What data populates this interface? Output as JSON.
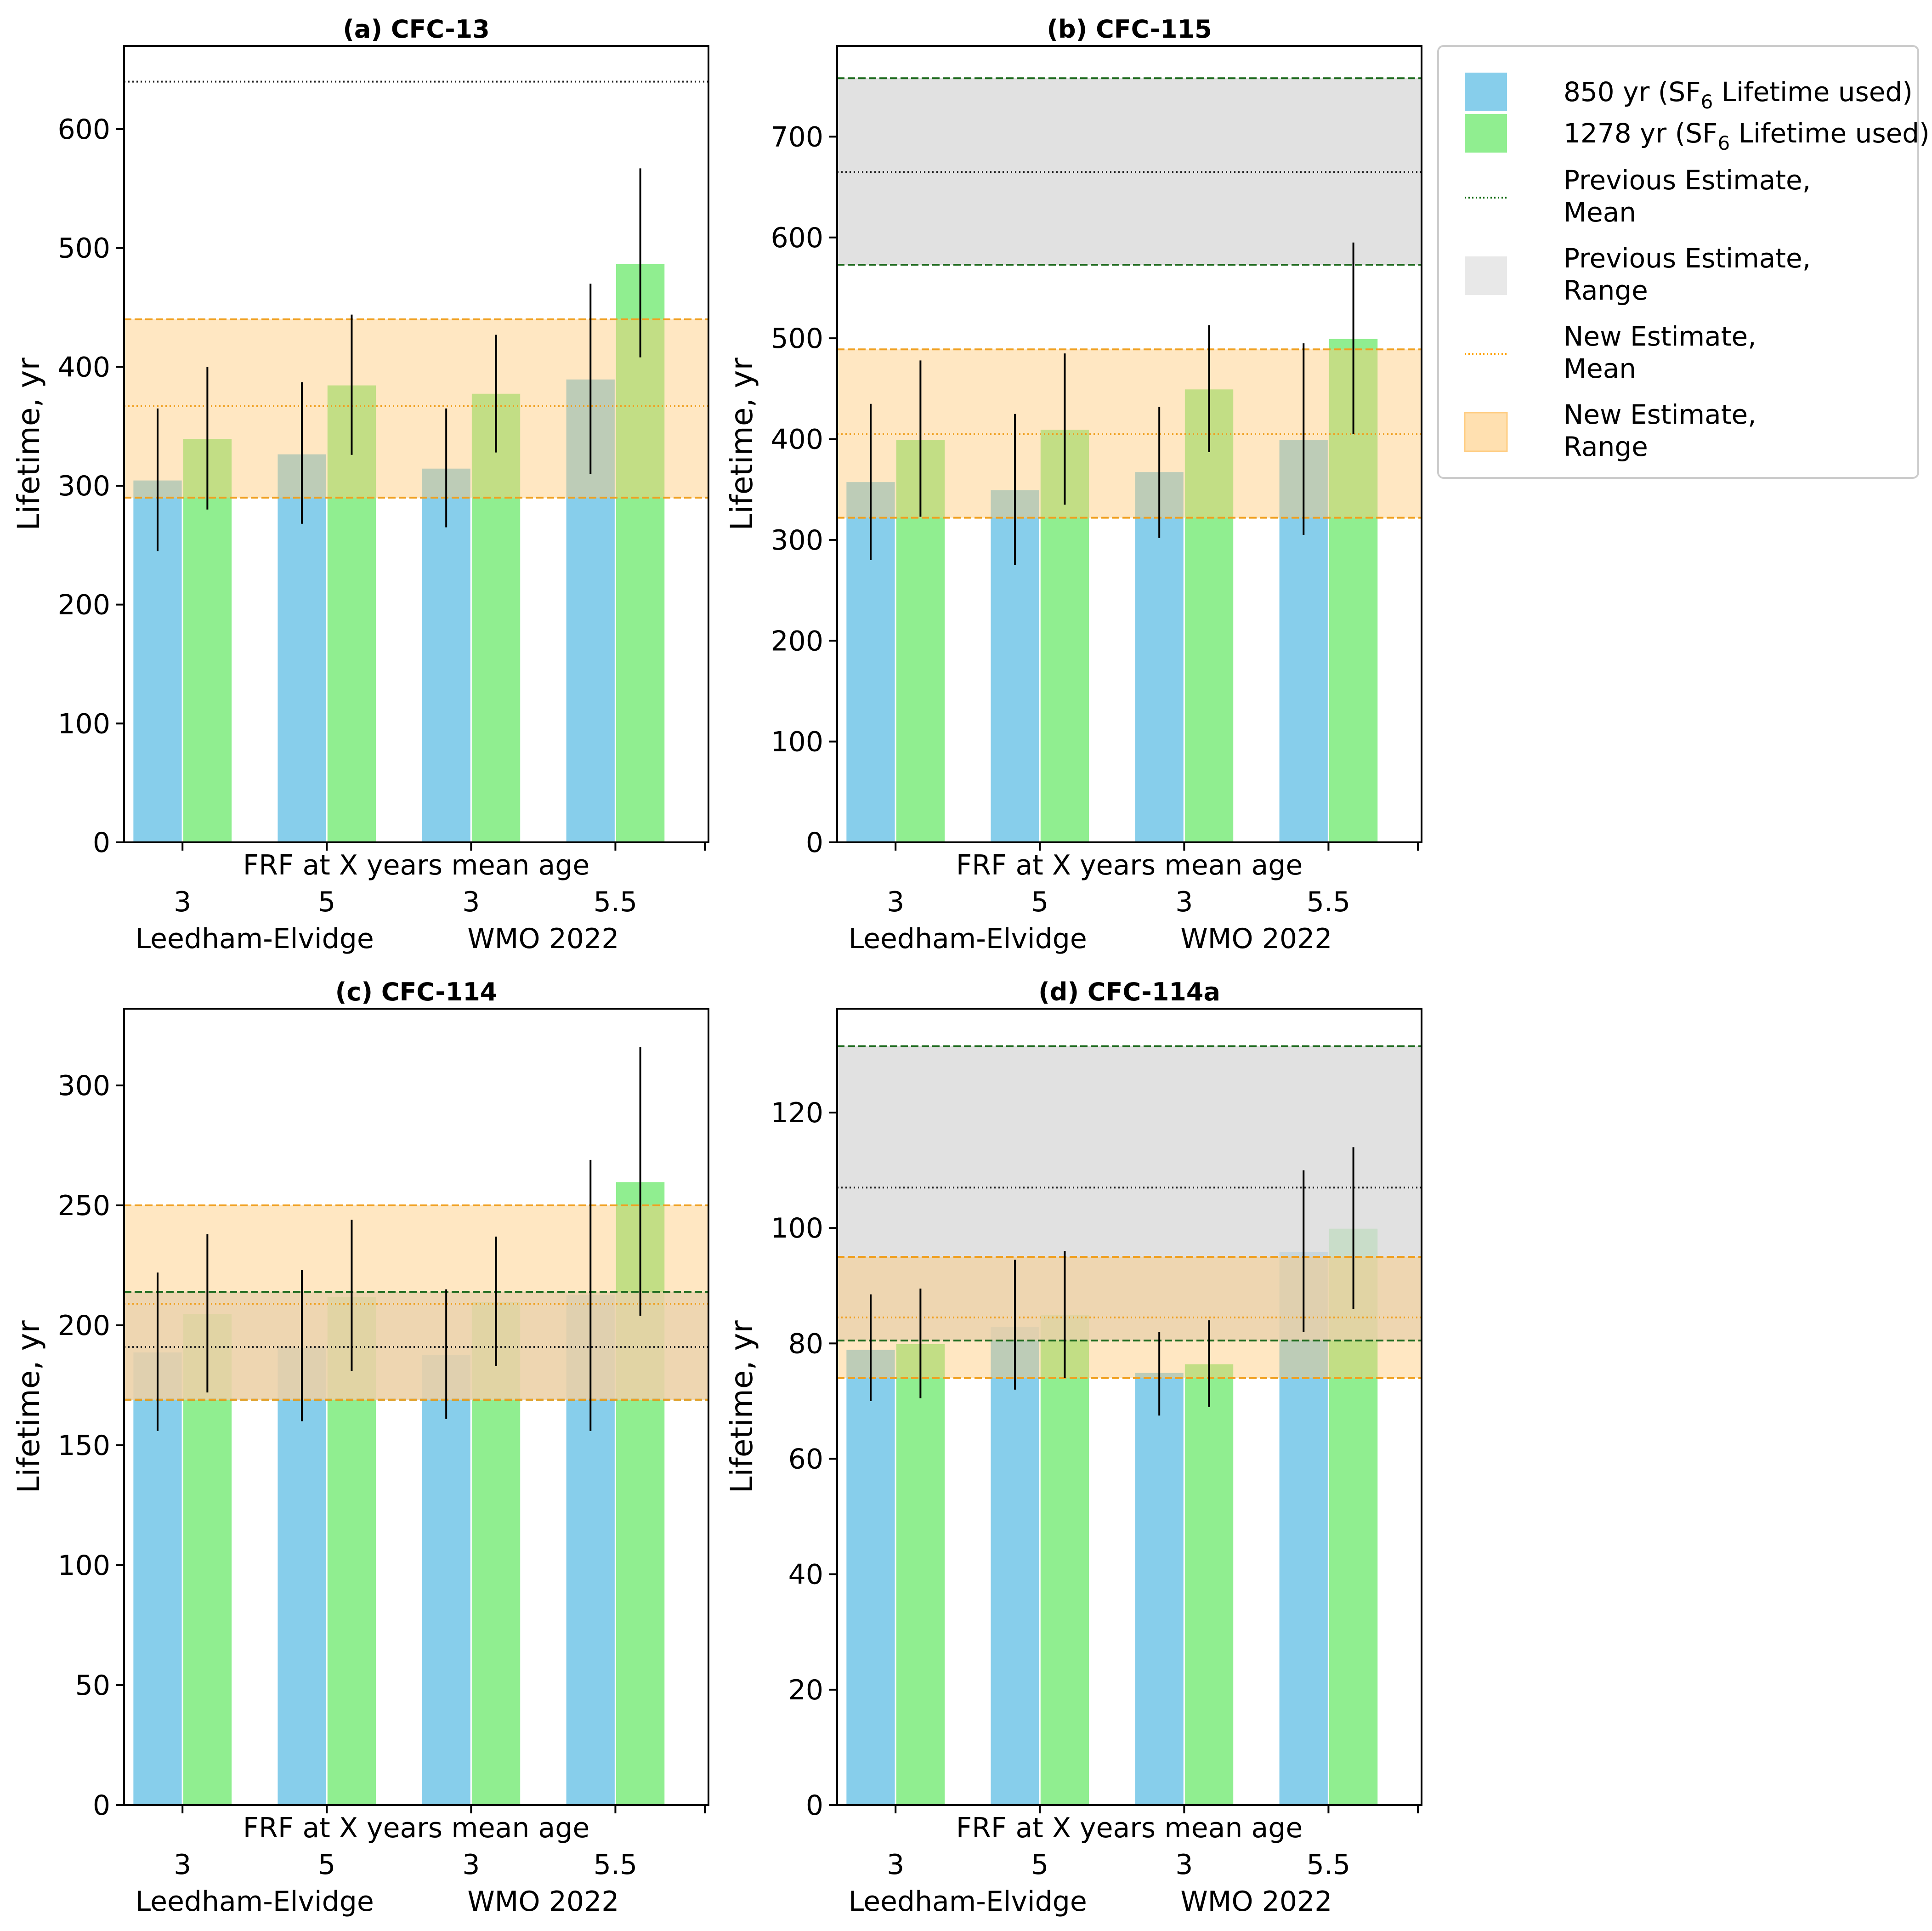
{
  "figure": {
    "legend": {
      "position": "right",
      "entries": [
        {
          "prefix": "850 yr (SF",
          "sub": "6",
          "suffix": " Lifetime used)",
          "kind": "patch",
          "color": "#87ceeb"
        },
        {
          "prefix": "1278 yr (SF",
          "sub": "6",
          "suffix": " Lifetime used)",
          "kind": "patch",
          "color": "#90ee90"
        },
        {
          "lines": [
            "Previous Estimate,",
            "Mean"
          ],
          "kind": "dotted-line",
          "color": "#006400"
        },
        {
          "lines": [
            "Previous Estimate,",
            "Range"
          ],
          "kind": "patch",
          "color": "#eeeeee"
        },
        {
          "lines": [
            "New Estimate,",
            "Mean"
          ],
          "kind": "dotted-line",
          "color": "#ffa500"
        },
        {
          "lines": [
            "New Estimate,",
            "Range"
          ],
          "kind": "patch",
          "color": "#ffe4b5"
        }
      ]
    }
  },
  "chart_data": [
    {
      "type": "bar",
      "title": "(a) CFC-13",
      "ylabel": "Lifetime, yr",
      "xlabel": "FRF at X years mean age",
      "ylim": [
        0,
        670
      ],
      "yticks": [
        0,
        100,
        200,
        300,
        400,
        500,
        600
      ],
      "categories": [
        "3",
        "5",
        "3",
        "5.5"
      ],
      "groups": [
        {
          "label": "Leedham-Elvidge",
          "span": [
            0,
            1
          ]
        },
        {
          "label": "WMO 2022",
          "span": [
            2,
            3
          ]
        }
      ],
      "series": [
        {
          "name": "850 yr (SF6 Lifetime used)",
          "color": "#87ceeb",
          "values": [
            305,
            327,
            315,
            390
          ],
          "err_low": [
            245,
            268,
            265,
            310
          ],
          "err_high": [
            365,
            387,
            365,
            470
          ]
        },
        {
          "name": "1278 yr (SF6 Lifetime used)",
          "color": "#90ee90",
          "values": [
            340,
            385,
            378,
            487
          ],
          "err_low": [
            280,
            326,
            328,
            408
          ],
          "err_high": [
            400,
            444,
            427,
            567
          ]
        }
      ],
      "previous_estimate": {
        "mean": 640
      },
      "new_estimate": {
        "mean": 367,
        "range": [
          290,
          440
        ]
      }
    },
    {
      "type": "bar",
      "title": "(b) CFC-115",
      "ylabel": "Lifetime, yr",
      "xlabel": "FRF at X years mean age",
      "ylim": [
        0,
        790
      ],
      "yticks": [
        0,
        100,
        200,
        300,
        400,
        500,
        600,
        700
      ],
      "categories": [
        "3",
        "5",
        "3",
        "5.5"
      ],
      "groups": [
        {
          "label": "Leedham-Elvidge",
          "span": [
            0,
            1
          ]
        },
        {
          "label": "WMO 2022",
          "span": [
            2,
            3
          ]
        }
      ],
      "series": [
        {
          "name": "850 yr (SF6 Lifetime used)",
          "color": "#87ceeb",
          "values": [
            358,
            350,
            368,
            400
          ],
          "err_low": [
            280,
            275,
            302,
            305
          ],
          "err_high": [
            435,
            425,
            432,
            495
          ]
        },
        {
          "name": "1278 yr (SF6 Lifetime used)",
          "color": "#90ee90",
          "values": [
            400,
            410,
            450,
            500
          ],
          "err_low": [
            323,
            335,
            387,
            405
          ],
          "err_high": [
            478,
            485,
            513,
            595
          ]
        }
      ],
      "previous_estimate": {
        "mean": 665,
        "range": [
          573,
          758
        ]
      },
      "new_estimate": {
        "mean": 405,
        "range": [
          322,
          489
        ]
      }
    },
    {
      "type": "bar",
      "title": "(c) CFC-114",
      "ylabel": "Lifetime, yr",
      "xlabel": "FRF at X years mean age",
      "ylim": [
        0,
        332
      ],
      "yticks": [
        0,
        50,
        100,
        150,
        200,
        250,
        300
      ],
      "categories": [
        "3",
        "5",
        "3",
        "5.5"
      ],
      "groups": [
        {
          "label": "Leedham-Elvidge",
          "span": [
            0,
            1
          ]
        },
        {
          "label": "WMO 2022",
          "span": [
            2,
            3
          ]
        }
      ],
      "series": [
        {
          "name": "850 yr (SF6 Lifetime used)",
          "color": "#87ceeb",
          "values": [
            189,
            191,
            188,
            213
          ],
          "err_low": [
            156,
            160,
            161,
            156
          ],
          "err_high": [
            222,
            223,
            215,
            269
          ]
        },
        {
          "name": "1278 yr (SF6 Lifetime used)",
          "color": "#90ee90",
          "values": [
            205,
            212,
            210,
            260
          ],
          "err_low": [
            172,
            181,
            183,
            204
          ],
          "err_high": [
            238,
            244,
            237,
            316
          ]
        }
      ],
      "previous_estimate": {
        "mean": 191,
        "range": [
          169,
          214
        ]
      },
      "new_estimate": {
        "mean": 209,
        "range": [
          169,
          250
        ]
      }
    },
    {
      "type": "bar",
      "title": "(d) CFC-114a",
      "ylabel": "Lifetime, yr",
      "xlabel": "FRF at X years mean age",
      "ylim": [
        0,
        138
      ],
      "yticks": [
        0,
        20,
        40,
        60,
        80,
        100,
        120
      ],
      "categories": [
        "3",
        "5",
        "3",
        "5.5"
      ],
      "groups": [
        {
          "label": "Leedham-Elvidge",
          "span": [
            0,
            1
          ]
        },
        {
          "label": "WMO 2022",
          "span": [
            2,
            3
          ]
        }
      ],
      "series": [
        {
          "name": "850 yr (SF6 Lifetime used)",
          "color": "#87ceeb",
          "values": [
            79,
            83,
            75,
            96
          ],
          "err_low": [
            70,
            72,
            67.5,
            82
          ],
          "err_high": [
            88.5,
            94.5,
            82,
            110
          ]
        },
        {
          "name": "1278 yr (SF6 Lifetime used)",
          "color": "#90ee90",
          "values": [
            80,
            85,
            76.5,
            100
          ],
          "err_low": [
            70.5,
            74,
            69,
            86
          ],
          "err_high": [
            89.5,
            96,
            84,
            114
          ]
        }
      ],
      "previous_estimate": {
        "mean": 107,
        "range": [
          80.5,
          131.5
        ]
      },
      "new_estimate": {
        "mean": 84.5,
        "range": [
          74,
          95
        ]
      }
    }
  ]
}
